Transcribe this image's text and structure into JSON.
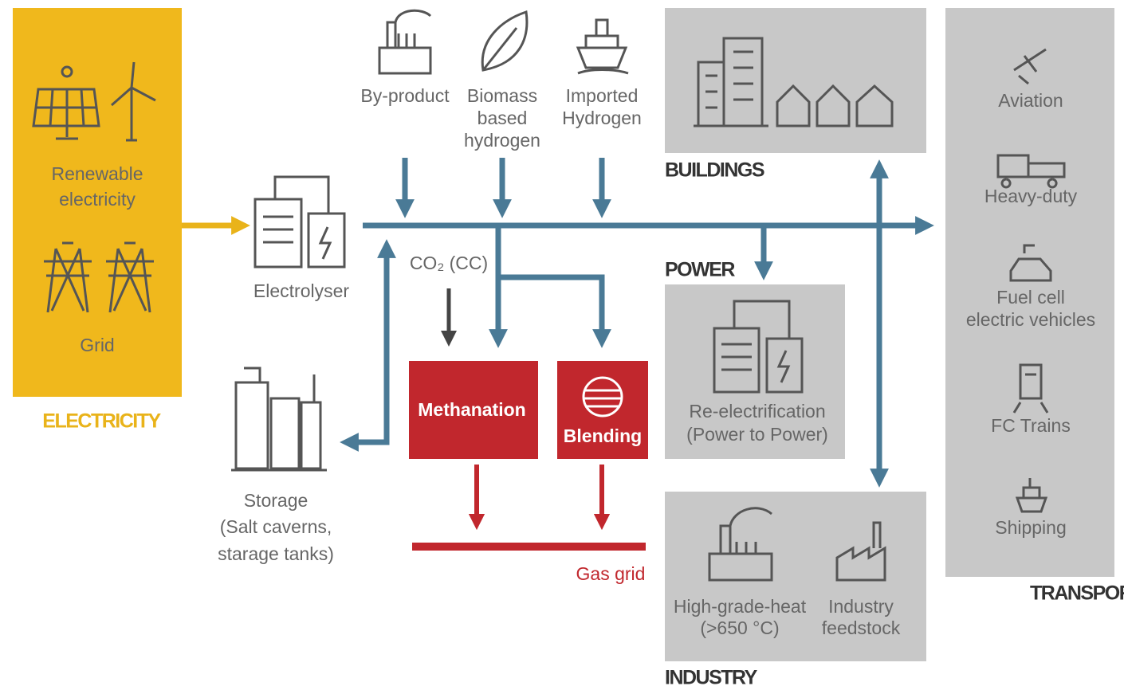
{
  "electricity": {
    "heading": "ELECTRICITY",
    "renewable": [
      "Renewable",
      "electricity"
    ],
    "grid": "Grid"
  },
  "sources": {
    "by_product": "By-product",
    "biomass": [
      "Biomass",
      "based",
      "hydrogen"
    ],
    "imported": [
      "Imported",
      "Hydrogen"
    ]
  },
  "electrolyser": "Electrolyser",
  "co2": "CO₂ (CC)",
  "methanation": "Methanation",
  "blending": "Blending",
  "gas_grid": "Gas grid",
  "storage": [
    "Storage",
    "(Salt caverns,",
    "starage tanks)"
  ],
  "buildings": {
    "heading": "BUILDINGS"
  },
  "power": {
    "heading": "POWER",
    "label": [
      "Re-electrification",
      "(Power to Power)"
    ]
  },
  "industry": {
    "heading": "INDUSTRY",
    "heat": [
      "High-grade-heat",
      "(>650 °C)"
    ],
    "feedstock": [
      "Industry",
      "feedstock"
    ]
  },
  "transport": {
    "heading": "TRANSPORT",
    "items": [
      [
        "Aviation"
      ],
      [
        "Heavy-duty"
      ],
      [
        "Fuel cell",
        "electric vehicles"
      ],
      [
        "FC Trains"
      ],
      [
        "Shipping"
      ]
    ]
  }
}
